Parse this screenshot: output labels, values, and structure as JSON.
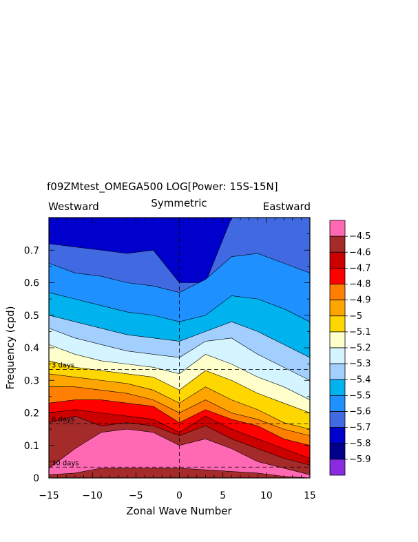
{
  "chart_data": {
    "type": "heatmap",
    "title": "f09ZMtest_OMEGA500 LOG[Power: 15S-15N]",
    "subtitle_left": "Westward",
    "subtitle_center": "Symmetric",
    "subtitle_right": "Eastward",
    "xlabel": "Zonal Wave Number",
    "ylabel": "Frequency (cpd)",
    "xlim": [
      -15,
      15
    ],
    "ylim": [
      0,
      0.8
    ],
    "x_ticks": [
      "−15",
      "−10",
      "−5",
      "0",
      "5",
      "10",
      "15"
    ],
    "x_tick_values": [
      -15,
      -10,
      -5,
      0,
      5,
      10,
      15
    ],
    "y_ticks": [
      "0",
      "0.1",
      "0.2",
      "0.3",
      "0.4",
      "0.5",
      "0.6",
      "0.7"
    ],
    "y_tick_values": [
      0,
      0.1,
      0.2,
      0.3,
      0.4,
      0.5,
      0.6,
      0.7
    ],
    "reference_lines": [
      {
        "label": "3 days",
        "frequency": 0.3333
      },
      {
        "label": "6 days",
        "frequency": 0.1667
      },
      {
        "label": "30 days",
        "frequency": 0.0333
      }
    ],
    "contour_levels": [
      -4.5,
      -4.6,
      -4.7,
      -4.8,
      -4.9,
      -5,
      -5.1,
      -5.2,
      -5.3,
      -5.4,
      -5.5,
      -5.6,
      -5.7,
      -5.8,
      -5.9
    ],
    "colorbar": {
      "labels": [
        "−4.5",
        "−4.6",
        "−4.7",
        "−4.8",
        "−4.9",
        "−5",
        "−5.1",
        "−5.2",
        "−5.3",
        "−5.4",
        "−5.5",
        "−5.6",
        "−5.7",
        "−5.8",
        "−5.9"
      ],
      "colors": [
        "#ff69b4",
        "#a52a2a",
        "#cd0000",
        "#ff0000",
        "#ff7f00",
        "#ffa500",
        "#ffd700",
        "#ffffcc",
        "#d4f4ff",
        "#a3cfff",
        "#00b2ee",
        "#1e90ff",
        "#4169e1",
        "#0000cd",
        "#00008b",
        "#8a2be2"
      ]
    },
    "field_x": [
      -15,
      -12,
      -9,
      -6,
      -3,
      0,
      3,
      6,
      9,
      12,
      15
    ],
    "field_boundaries": [
      {
        "level": -4.5,
        "y": [
          0.01,
          0.015,
          0.03,
          0.03,
          0.03,
          0.03,
          0.025,
          0.02,
          0.015,
          0.005,
          0.0
        ]
      },
      {
        "level": -4.6,
        "y": [
          0.03,
          0.09,
          0.14,
          0.15,
          0.14,
          0.1,
          0.12,
          0.09,
          0.05,
          0.03,
          0.01
        ]
      },
      {
        "level": -4.7,
        "y": [
          0.17,
          0.19,
          0.16,
          0.17,
          0.16,
          0.13,
          0.16,
          0.12,
          0.09,
          0.06,
          0.04
        ]
      },
      {
        "level": -4.8,
        "y": [
          0.2,
          0.21,
          0.2,
          0.19,
          0.18,
          0.14,
          0.19,
          0.15,
          0.12,
          0.09,
          0.06
        ]
      },
      {
        "level": -4.9,
        "y": [
          0.23,
          0.24,
          0.24,
          0.23,
          0.22,
          0.17,
          0.21,
          0.18,
          0.16,
          0.12,
          0.1
        ]
      },
      {
        "level": -5,
        "y": [
          0.28,
          0.28,
          0.27,
          0.26,
          0.24,
          0.2,
          0.24,
          0.2,
          0.18,
          0.15,
          0.13
        ]
      },
      {
        "level": -5.1,
        "y": [
          0.32,
          0.31,
          0.3,
          0.29,
          0.27,
          0.23,
          0.28,
          0.24,
          0.21,
          0.17,
          0.15
        ]
      },
      {
        "level": -5.2,
        "y": [
          0.36,
          0.34,
          0.33,
          0.32,
          0.31,
          0.27,
          0.33,
          0.3,
          0.26,
          0.23,
          0.2
        ]
      },
      {
        "level": -5.3,
        "y": [
          0.41,
          0.38,
          0.36,
          0.35,
          0.34,
          0.32,
          0.38,
          0.35,
          0.31,
          0.28,
          0.24
        ]
      },
      {
        "level": -5.4,
        "y": [
          0.46,
          0.43,
          0.41,
          0.39,
          0.38,
          0.37,
          0.42,
          0.43,
          0.38,
          0.34,
          0.3
        ]
      },
      {
        "level": -5.5,
        "y": [
          0.5,
          0.48,
          0.46,
          0.44,
          0.43,
          0.42,
          0.45,
          0.48,
          0.45,
          0.41,
          0.37
        ]
      },
      {
        "level": -5.6,
        "y": [
          0.57,
          0.55,
          0.53,
          0.51,
          0.5,
          0.48,
          0.5,
          0.56,
          0.55,
          0.52,
          0.48
        ]
      },
      {
        "level": -5.7,
        "y": [
          0.66,
          0.63,
          0.62,
          0.6,
          0.59,
          0.57,
          0.61,
          0.68,
          0.69,
          0.66,
          0.63
        ]
      },
      {
        "level": -5.8,
        "y": [
          0.72,
          0.71,
          0.7,
          0.69,
          0.7,
          0.6,
          0.6,
          0.8,
          0.8,
          0.8,
          0.8
        ]
      },
      {
        "level": -5.9,
        "y": [
          0.8,
          0.8,
          0.8,
          0.8,
          0.8,
          0.8,
          0.8,
          0.8,
          0.8,
          0.8,
          0.8
        ]
      }
    ],
    "field_band_colors": [
      "#ff69b4",
      "#a52a2a",
      "#cd0000",
      "#ff0000",
      "#ff7f00",
      "#ffa500",
      "#ffd700",
      "#ffffcc",
      "#d4f4ff",
      "#a3cfff",
      "#00b2ee",
      "#1e90ff",
      "#4169e1",
      "#0000cd",
      "#00008b"
    ],
    "grid": false,
    "legend": "colorbar right"
  }
}
